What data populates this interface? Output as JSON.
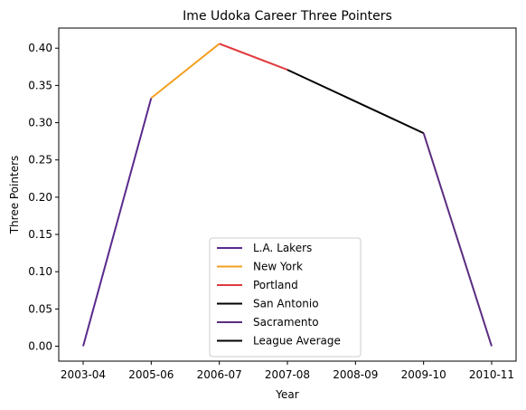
{
  "chart_data": {
    "type": "line",
    "title": "Ime Udoka Career Three Pointers",
    "xlabel": "Year",
    "ylabel": "Three Pointers",
    "categories": [
      "2003-04",
      "2005-06",
      "2006-07",
      "2007-08",
      "2008-09",
      "2009-10",
      "2010-11"
    ],
    "ylim": [
      -0.02,
      0.427
    ],
    "yticks": [
      0.0,
      0.05,
      0.1,
      0.15,
      0.2,
      0.25,
      0.3,
      0.35,
      0.4
    ],
    "ytick_labels": [
      "0.00",
      "0.05",
      "0.10",
      "0.15",
      "0.20",
      "0.25",
      "0.30",
      "0.35",
      "0.40"
    ],
    "grid": false,
    "legend_position": "lower-center",
    "series": [
      {
        "name": "L.A. Lakers",
        "color": "#582a8c",
        "points": [
          [
            "2003-04",
            0.0
          ],
          [
            "2005-06",
            0.333
          ]
        ]
      },
      {
        "name": "New York",
        "color": "#f5a020",
        "points": [
          [
            "2005-06",
            0.333
          ],
          [
            "2006-07",
            0.406
          ]
        ]
      },
      {
        "name": "Portland",
        "color": "#e03a3e",
        "points": [
          [
            "2006-07",
            0.406
          ],
          [
            "2007-08",
            0.371
          ]
        ]
      },
      {
        "name": "San Antonio",
        "color": "#000000",
        "points": [
          [
            "2007-08",
            0.371
          ],
          [
            "2009-10",
            0.286
          ]
        ]
      },
      {
        "name": "Sacramento",
        "color": "#5a2d81",
        "points": [
          [
            "2009-10",
            0.286
          ],
          [
            "2010-11",
            0.0
          ]
        ]
      },
      {
        "name": "League Average",
        "color": "#000000",
        "points": []
      }
    ]
  }
}
